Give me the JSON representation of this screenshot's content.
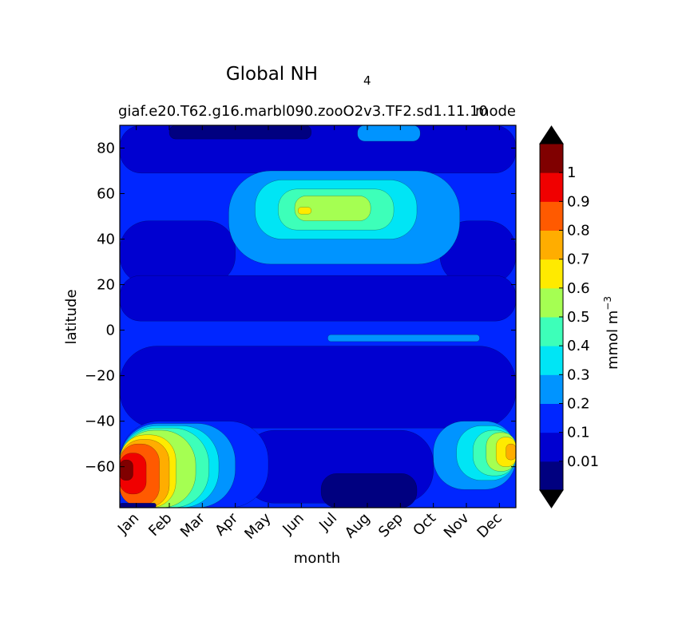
{
  "chart_data": {
    "type": "heatmap",
    "title_main": "Global NH",
    "title_sub": "4",
    "case_label": "giaf.e20.T62.g16.marbl090.zooO2v3.TF2.sd1.11.10",
    "case_label_overlap": "mode",
    "xlabel": "month",
    "ylabel": "latitude",
    "x_categories": [
      "Jan",
      "Feb",
      "Mar",
      "Apr",
      "May",
      "Jun",
      "Jul",
      "Aug",
      "Sep",
      "Oct",
      "Nov",
      "Dec"
    ],
    "ylim": [
      -78,
      90
    ],
    "y_ticks": [
      80,
      60,
      40,
      20,
      0,
      -20,
      -40,
      -60
    ],
    "y_tick_labels": [
      "80",
      "60",
      "40",
      "20",
      "0",
      "−20",
      "−40",
      "−60"
    ],
    "colorbar": {
      "label": "mmol m",
      "label_exp": "−3",
      "levels": [
        0.01,
        0.1,
        0.2,
        0.3,
        0.4,
        0.5,
        0.6,
        0.7,
        0.8,
        0.9,
        1.0
      ],
      "tick_labels": [
        "0.01",
        "0.1",
        "0.2",
        "0.3",
        "0.4",
        "0.5",
        "0.6",
        "0.7",
        "0.8",
        "0.9",
        "1"
      ],
      "colors": [
        "#000080",
        "#0000d0",
        "#0026ff",
        "#0094ff",
        "#00e5f5",
        "#3dffb9",
        "#a5ff52",
        "#ffea00",
        "#ffad00",
        "#ff5a00",
        "#f00000",
        "#800000"
      ],
      "extend": "both",
      "extend_low_color": "#000000",
      "extend_high_color": "#000000"
    },
    "grid": false,
    "background_color": "#0026ff",
    "features": [
      {
        "name": "arctic-band",
        "level": 1,
        "months": [
          -0.5,
          11.5
        ],
        "lats": [
          69,
          90
        ]
      },
      {
        "name": "north-winter-low",
        "level": 1,
        "months": [
          -0.5,
          3.0
        ],
        "lats": [
          20,
          48
        ]
      },
      {
        "name": "north-autumn-low",
        "level": 1,
        "months": [
          9.2,
          11.5
        ],
        "lats": [
          20,
          48
        ]
      },
      {
        "name": "equatorial-low",
        "level": 1,
        "months": [
          -0.5,
          11.5
        ],
        "lats": [
          4,
          24
        ]
      },
      {
        "name": "south-subtropical-low",
        "level": 1,
        "months": [
          -0.5,
          11.5
        ],
        "lats": [
          -43,
          -7
        ]
      },
      {
        "name": "south-winter-low",
        "level": 1,
        "months": [
          3.2,
          9.0
        ],
        "lats": [
          -76,
          -44
        ]
      },
      {
        "name": "south-min",
        "level": 0,
        "months": [
          5.6,
          8.5
        ],
        "lats": [
          -78,
          -63
        ]
      },
      {
        "name": "arctic-cap-min",
        "level": 0,
        "months": [
          1.0,
          5.3
        ],
        "lats": [
          84,
          90
        ]
      },
      {
        "name": "summer-bloom-outer",
        "level": 3,
        "months": [
          2.8,
          9.8
        ],
        "lats": [
          29,
          70
        ]
      },
      {
        "name": "summer-bloom-04",
        "level": 4,
        "months": [
          3.6,
          8.5
        ],
        "lats": [
          40,
          66
        ]
      },
      {
        "name": "summer-bloom-05",
        "level": 5,
        "months": [
          4.3,
          7.8
        ],
        "lats": [
          44,
          62
        ]
      },
      {
        "name": "summer-bloom-06",
        "level": 6,
        "months": [
          4.8,
          7.1
        ],
        "lats": [
          48,
          59
        ]
      },
      {
        "name": "summer-bloom-07",
        "level": 7,
        "months": [
          4.9,
          5.3
        ],
        "lats": [
          51,
          54
        ]
      },
      {
        "name": "arctic-summer-patch",
        "level": 3,
        "months": [
          6.7,
          8.6
        ],
        "lats": [
          83,
          90
        ]
      },
      {
        "name": "equatorial-tongue",
        "level": 3,
        "months": [
          5.8,
          10.4
        ],
        "lats": [
          -5,
          -2
        ]
      },
      {
        "name": "austral-summer-03",
        "level": 3,
        "months": [
          9.0,
          11.5
        ],
        "lats": [
          -70,
          -40
        ]
      },
      {
        "name": "austral-summer-04",
        "level": 4,
        "months": [
          9.7,
          11.5
        ],
        "lats": [
          -66,
          -42
        ]
      },
      {
        "name": "austral-summer-05",
        "level": 5,
        "months": [
          10.2,
          11.5
        ],
        "lats": [
          -64,
          -44
        ]
      },
      {
        "name": "austral-summer-06",
        "level": 6,
        "months": [
          10.6,
          11.5
        ],
        "lats": [
          -62,
          -45
        ]
      },
      {
        "name": "austral-summer-07",
        "level": 7,
        "months": [
          10.9,
          11.5
        ],
        "lats": [
          -60,
          -47
        ]
      },
      {
        "name": "austral-summer-08",
        "level": 8,
        "months": [
          11.2,
          11.5
        ],
        "lats": [
          -57,
          -50
        ]
      },
      {
        "name": "southern-high-02",
        "level": 2,
        "months": [
          -0.5,
          4.0
        ],
        "lats": [
          -78,
          -40
        ]
      },
      {
        "name": "southern-high-03",
        "level": 3,
        "months": [
          -0.5,
          3.0
        ],
        "lats": [
          -78,
          -41
        ]
      },
      {
        "name": "southern-high-04",
        "level": 4,
        "months": [
          -0.5,
          2.5
        ],
        "lats": [
          -78,
          -42
        ]
      },
      {
        "name": "southern-high-05",
        "level": 5,
        "months": [
          -0.5,
          2.2
        ],
        "lats": [
          -78,
          -43
        ]
      },
      {
        "name": "southern-high-06",
        "level": 6,
        "months": [
          -0.5,
          1.8
        ],
        "lats": [
          -78,
          -44
        ]
      },
      {
        "name": "southern-high-07",
        "level": 7,
        "months": [
          -0.5,
          1.2
        ],
        "lats": [
          -78,
          -46
        ]
      },
      {
        "name": "southern-high-08",
        "level": 8,
        "months": [
          -0.5,
          1.0
        ],
        "lats": [
          -78,
          -48
        ]
      },
      {
        "name": "southern-high-09",
        "level": 9,
        "months": [
          -0.5,
          0.7
        ],
        "lats": [
          -77,
          -50
        ]
      },
      {
        "name": "southern-high-10",
        "level": 10,
        "months": [
          -0.5,
          0.3
        ],
        "lats": [
          -72,
          -54
        ]
      },
      {
        "name": "southern-high-11",
        "level": 11,
        "months": [
          -0.5,
          -0.1
        ],
        "lats": [
          -66,
          -57
        ]
      },
      {
        "name": "southern-ice-edge-min",
        "level": 0,
        "months": [
          -0.5,
          0.6
        ],
        "lats": [
          -78,
          -76
        ]
      }
    ]
  }
}
